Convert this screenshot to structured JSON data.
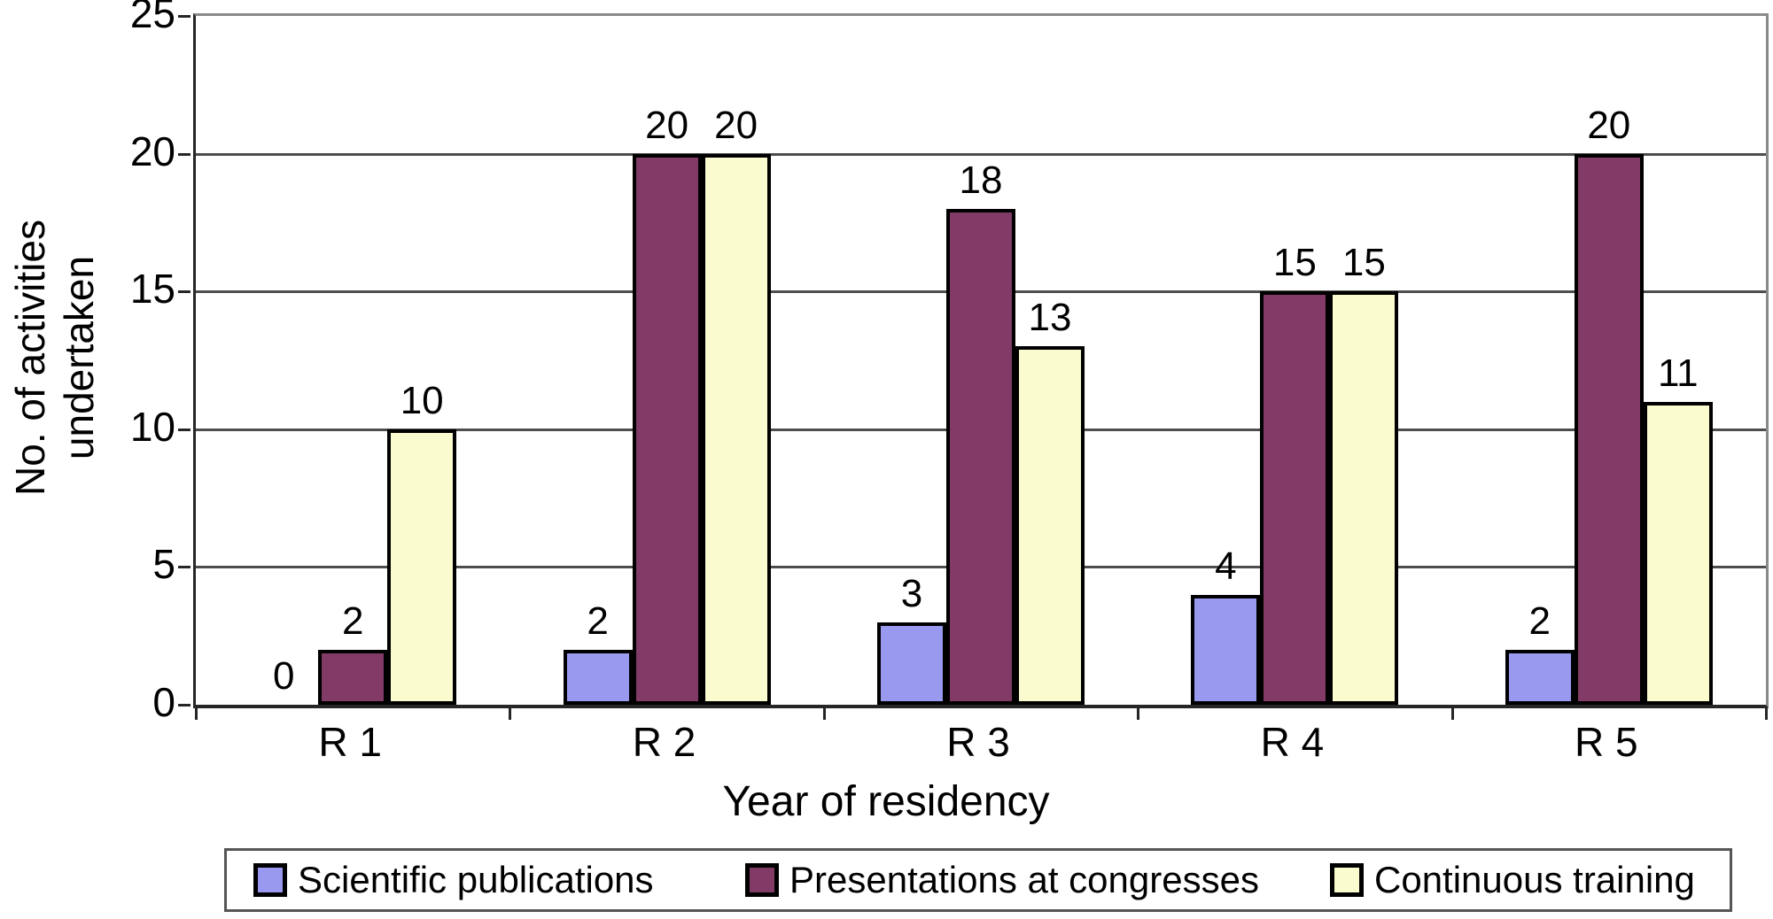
{
  "chart_data": {
    "type": "bar",
    "categories": [
      "R 1",
      "R 2",
      "R 3",
      "R 4",
      "R 5"
    ],
    "series": [
      {
        "name": "Scientific publications",
        "color": "#9999f0",
        "values": [
          0,
          2,
          3,
          4,
          2
        ]
      },
      {
        "name": "Presentations at congresses",
        "color": "#823a66",
        "values": [
          2,
          20,
          18,
          15,
          20
        ]
      },
      {
        "name": "Continuous training",
        "color": "#fbfbd0",
        "values": [
          10,
          20,
          13,
          15,
          11
        ]
      }
    ],
    "xlabel": "Year of residency",
    "ylabel": "No. of activities undertaken",
    "ylim": [
      0,
      25
    ],
    "yticks": [
      0,
      5,
      10,
      15,
      20,
      25
    ],
    "grid": true,
    "bar_value_labels": true,
    "legend_position": "bottom"
  },
  "colors": {
    "axis": "#262626",
    "gridline": "#4d4d4d",
    "background": "#ffffff"
  }
}
